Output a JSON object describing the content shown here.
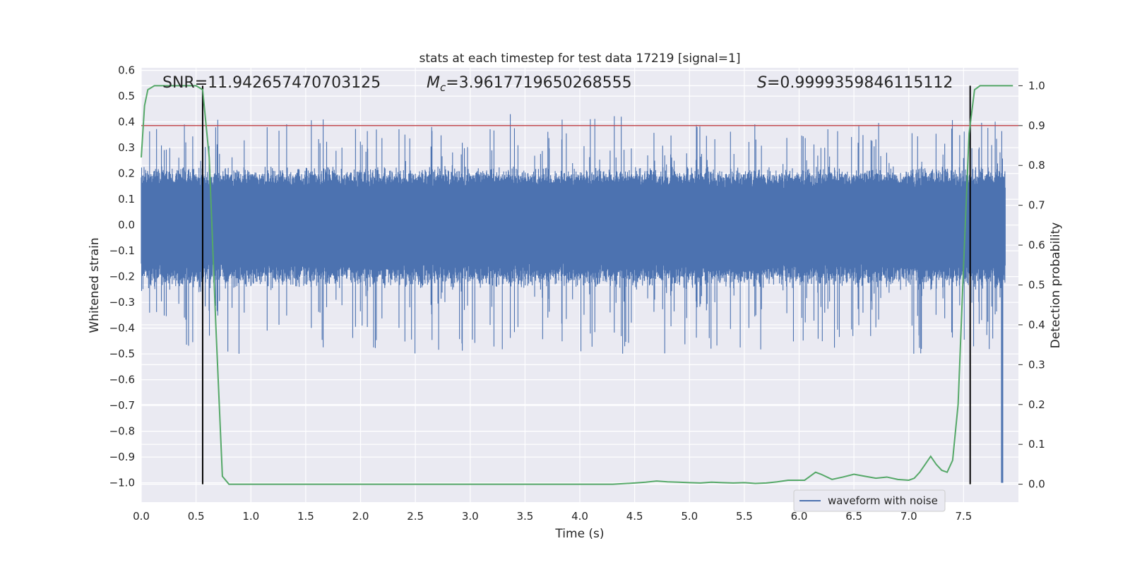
{
  "chart_data": {
    "type": "line",
    "title": "stats at each timestep for test data 17219 [signal=1]",
    "xlabel": "Time (s)",
    "ylabel_left": "Whitened strain",
    "ylabel_right": "Detection probability",
    "xlim": [
      0.0,
      8.0
    ],
    "ylim_left": [
      -1.075,
      0.61
    ],
    "ylim_right": [
      -0.045,
      1.045
    ],
    "grid": true,
    "x_ticks": [
      "0.0",
      "0.5",
      "1.0",
      "1.5",
      "2.0",
      "2.5",
      "3.0",
      "3.5",
      "4.0",
      "4.5",
      "5.0",
      "5.5",
      "6.0",
      "6.5",
      "7.0",
      "7.5"
    ],
    "y_ticks_left": [
      "0.6",
      "0.5",
      "0.4",
      "0.3",
      "0.2",
      "0.1",
      "0.0",
      "−0.1",
      "−0.2",
      "−0.3",
      "−0.4",
      "−0.5",
      "−0.6",
      "−0.7",
      "−0.8",
      "−0.9",
      "−1.0"
    ],
    "y_ticks_right": [
      "1.0",
      "0.9",
      "0.8",
      "0.7",
      "0.6",
      "0.5",
      "0.4",
      "0.3",
      "0.2",
      "0.1",
      "0.0"
    ],
    "threshold": {
      "name": "threshold",
      "axis": "right",
      "value": 0.9
    },
    "vertical_markers": [
      0.56,
      7.56
    ],
    "noise_envelope": {
      "core_amplitude": 0.23,
      "spike_max": 0.45,
      "spike_min": -0.5,
      "glitch_time": 7.85,
      "glitch_min": -1.0
    },
    "series": [
      {
        "name": "waveform with noise",
        "axis": "left",
        "color": "#4c72b0"
      },
      {
        "name": "detection probability",
        "axis": "right",
        "color": "#55a868",
        "x": [
          0.0,
          0.03,
          0.06,
          0.12,
          0.2,
          0.3,
          0.4,
          0.5,
          0.56,
          0.62,
          0.68,
          0.74,
          0.8,
          0.86,
          1.0,
          1.5,
          2.0,
          2.5,
          3.0,
          3.5,
          4.0,
          4.3,
          4.5,
          4.6,
          4.7,
          4.8,
          4.9,
          5.0,
          5.1,
          5.2,
          5.3,
          5.4,
          5.5,
          5.6,
          5.7,
          5.8,
          5.9,
          6.0,
          6.05,
          6.1,
          6.15,
          6.2,
          6.3,
          6.4,
          6.5,
          6.6,
          6.7,
          6.8,
          6.9,
          7.0,
          7.05,
          7.1,
          7.15,
          7.2,
          7.25,
          7.3,
          7.35,
          7.4,
          7.45,
          7.5,
          7.55,
          7.6,
          7.65,
          7.7,
          7.8,
          7.9,
          7.95
        ],
        "y": [
          0.82,
          0.95,
          0.99,
          1.0,
          1.0,
          1.0,
          1.0,
          1.0,
          0.99,
          0.82,
          0.4,
          0.02,
          0.0,
          0.0,
          0.0,
          0.0,
          0.0,
          0.0,
          0.0,
          0.0,
          0.0,
          0.0,
          0.003,
          0.005,
          0.008,
          0.006,
          0.005,
          0.004,
          0.003,
          0.005,
          0.004,
          0.003,
          0.004,
          0.002,
          0.003,
          0.006,
          0.01,
          0.01,
          0.01,
          0.02,
          0.03,
          0.025,
          0.012,
          0.018,
          0.025,
          0.02,
          0.015,
          0.018,
          0.012,
          0.01,
          0.015,
          0.03,
          0.05,
          0.07,
          0.05,
          0.035,
          0.03,
          0.06,
          0.2,
          0.55,
          0.88,
          0.99,
          1.0,
          1.0,
          1.0,
          1.0,
          1.0
        ]
      }
    ],
    "legend": {
      "entries": [
        "waveform with noise"
      ],
      "placement": "bottom-right"
    },
    "annotations": [
      {
        "label": "SNR",
        "value": "11.942657470703125"
      },
      {
        "label": "M",
        "subscript": "c",
        "value": "3.9617719650268555"
      },
      {
        "label": "S",
        "value": "0.9999359846115112"
      }
    ]
  }
}
